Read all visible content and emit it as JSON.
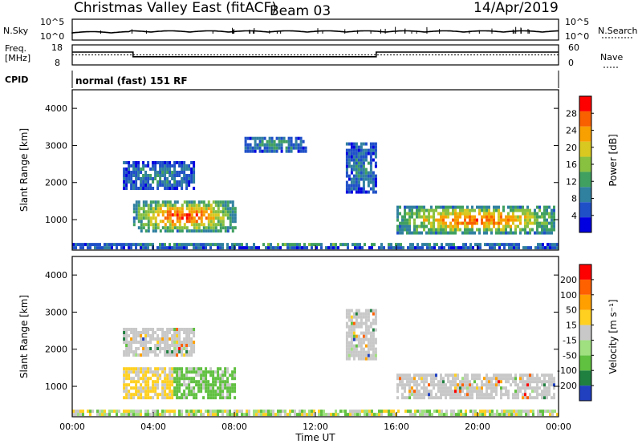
{
  "header": {
    "title": "Christmas Valley East (fitACF)",
    "beam": "Beam 03",
    "date": "14/Apr/2019"
  },
  "nsky_panel": {
    "left_label": "N.Sky",
    "right_label": "N.Search",
    "left_ticks": [
      "10^5",
      "10^0"
    ],
    "right_ticks": [
      "10^5",
      "10^0"
    ]
  },
  "freq_panel": {
    "left_label_line1": "Freq.",
    "left_label_line2": "[MHz]",
    "right_label": "Nave",
    "left_ticks": [
      "18",
      "8"
    ],
    "right_ticks": [
      "60",
      "0"
    ],
    "freq_steps": [
      {
        "t0": 0,
        "t1": 3,
        "value": 14.5
      },
      {
        "t0": 3,
        "t1": 15,
        "value": 12
      },
      {
        "t0": 15,
        "t1": 24,
        "value": 14.5
      }
    ],
    "nave_level": 30
  },
  "cpid": {
    "label": "CPID",
    "mode": "normal (fast) 151 RF"
  },
  "chart_data": [
    {
      "type": "heatmap",
      "name": "Power",
      "ylabel": "Slant Range [km]",
      "xlabel": "",
      "y_ticks": [
        "4000",
        "3000",
        "2000",
        "1000"
      ],
      "y_tick_values": [
        4000,
        3000,
        2000,
        1000
      ],
      "ylim": [
        180,
        4500
      ],
      "colorbar_title": "Power [dB]",
      "colorbar_ticks": [
        "28",
        "24",
        "20",
        "16",
        "12",
        "8",
        "4"
      ],
      "colors": [
        "#0000e0",
        "#2050c8",
        "#3080a0",
        "#40a060",
        "#88c040",
        "#d8c820",
        "#f8a000",
        "#f86000",
        "#ff0000"
      ],
      "regions": [
        {
          "t0": 3.0,
          "t1": 8.0,
          "r0": 650,
          "r1": 1450,
          "core": 26
        },
        {
          "t0": 16.0,
          "t1": 23.8,
          "r0": 600,
          "r1": 1300,
          "core": 25
        },
        {
          "t0": 2.5,
          "t1": 6.0,
          "r0": 1800,
          "r1": 2500,
          "core": 9
        },
        {
          "t0": 13.5,
          "t1": 15.0,
          "r0": 1700,
          "r1": 3000,
          "core": 8
        },
        {
          "t0": 8.5,
          "t1": 11.5,
          "r0": 2800,
          "r1": 3200,
          "core": 10
        },
        {
          "t0": 0.0,
          "t1": 24.0,
          "r0": 200,
          "r1": 320,
          "core": 12
        }
      ]
    },
    {
      "type": "heatmap",
      "name": "Velocity",
      "ylabel": "Slant Range [km]",
      "xlabel": "Time UT",
      "x_ticks": [
        "00:00",
        "04:00",
        "08:00",
        "12:00",
        "16:00",
        "20:00",
        "00:00"
      ],
      "x_tick_values": [
        0,
        4,
        8,
        12,
        16,
        20,
        24
      ],
      "y_ticks": [
        "4000",
        "3000",
        "2000",
        "1000"
      ],
      "y_tick_values": [
        4000,
        3000,
        2000,
        1000
      ],
      "ylim": [
        180,
        4500
      ],
      "colorbar_title": "Velocity [m s⁻¹]",
      "colorbar_ticks": [
        "200",
        "100",
        "50",
        "15",
        "-15",
        "-50",
        "-100",
        "-200"
      ],
      "colors": [
        "#2040c0",
        "#208040",
        "#60c040",
        "#a0e080",
        "#c8c8c8",
        "#ffd020",
        "#ffa000",
        "#ff6000",
        "#ff0000"
      ],
      "regions": [
        {
          "t0": 2.5,
          "t1": 8.0,
          "r0": 650,
          "r1": 1450,
          "kind": "mixed"
        },
        {
          "t0": 16.0,
          "t1": 23.8,
          "r0": 650,
          "r1": 1300,
          "kind": "gray"
        },
        {
          "t0": 2.5,
          "t1": 6.0,
          "r0": 1800,
          "r1": 2500,
          "kind": "gray"
        },
        {
          "t0": 13.5,
          "t1": 15.0,
          "r0": 1700,
          "r1": 3000,
          "kind": "gray"
        },
        {
          "t0": 0.0,
          "t1": 24.0,
          "r0": 200,
          "r1": 320,
          "kind": "low"
        }
      ]
    }
  ]
}
